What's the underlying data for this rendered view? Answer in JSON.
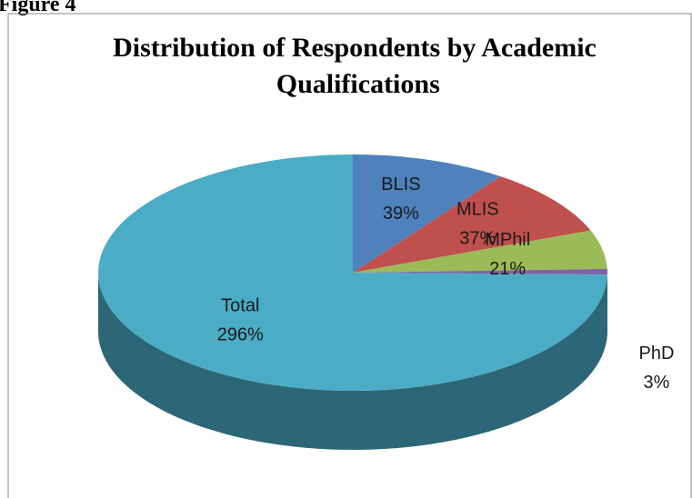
{
  "figure_label": "Figure 4",
  "chart_data": {
    "type": "pie",
    "title": "Distribution of Respondents by Academic Qualifications",
    "categories": [
      "BLIS",
      "MLIS",
      "MPhil",
      "PhD",
      "Total"
    ],
    "values": [
      39,
      37,
      21,
      3,
      296
    ],
    "value_labels": [
      "39%",
      "37%",
      "21%",
      "3%",
      "296%"
    ],
    "colors": [
      "#4f81bd",
      "#c0504d",
      "#9bbb59",
      "#8064a2",
      "#4bacc6"
    ],
    "three_d": true
  }
}
